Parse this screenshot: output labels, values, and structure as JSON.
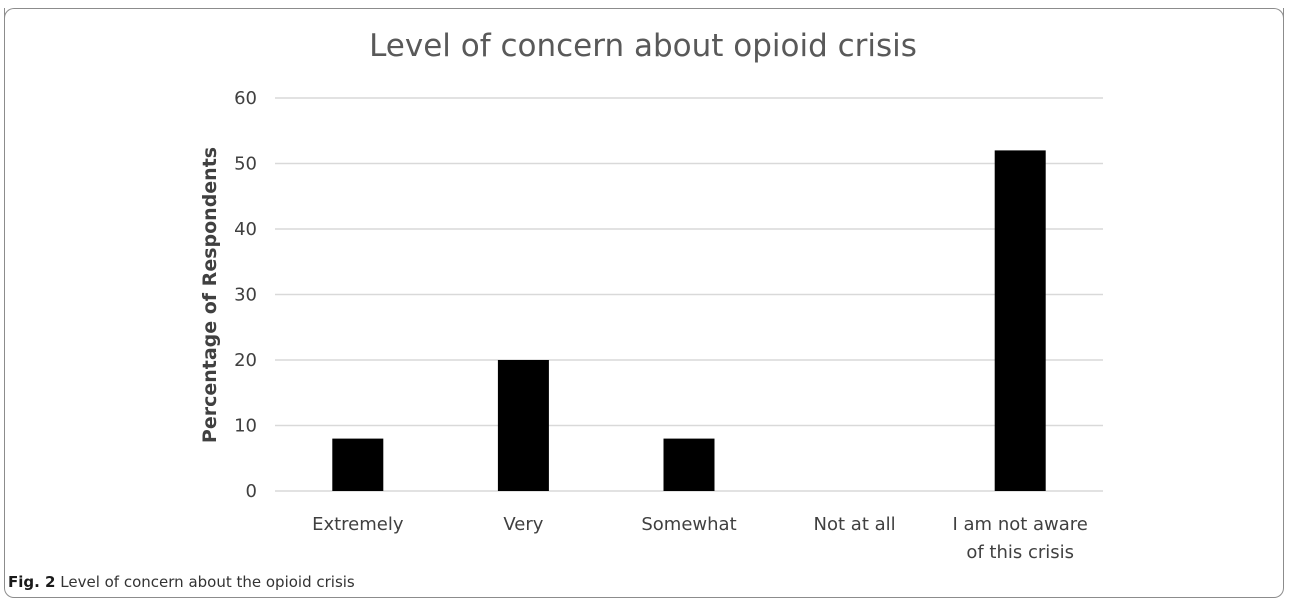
{
  "caption": {
    "label": "Fig. 2",
    "text": "Level of concern about the opioid crisis"
  },
  "chart_data": {
    "type": "bar",
    "title": "Level of concern about opioid crisis",
    "xlabel": "",
    "ylabel": "Percentage of Respondents",
    "categories": [
      [
        "Extremely"
      ],
      [
        "Very"
      ],
      [
        "Somewhat"
      ],
      [
        "Not at all"
      ],
      [
        "I am not aware",
        "of this crisis"
      ]
    ],
    "values": [
      8,
      20,
      8,
      0,
      52
    ],
    "ylim": [
      0,
      60
    ],
    "yticks": [
      0,
      10,
      20,
      30,
      40,
      50,
      60
    ],
    "grid": true,
    "legend": "none",
    "bar_color": "#000000"
  }
}
